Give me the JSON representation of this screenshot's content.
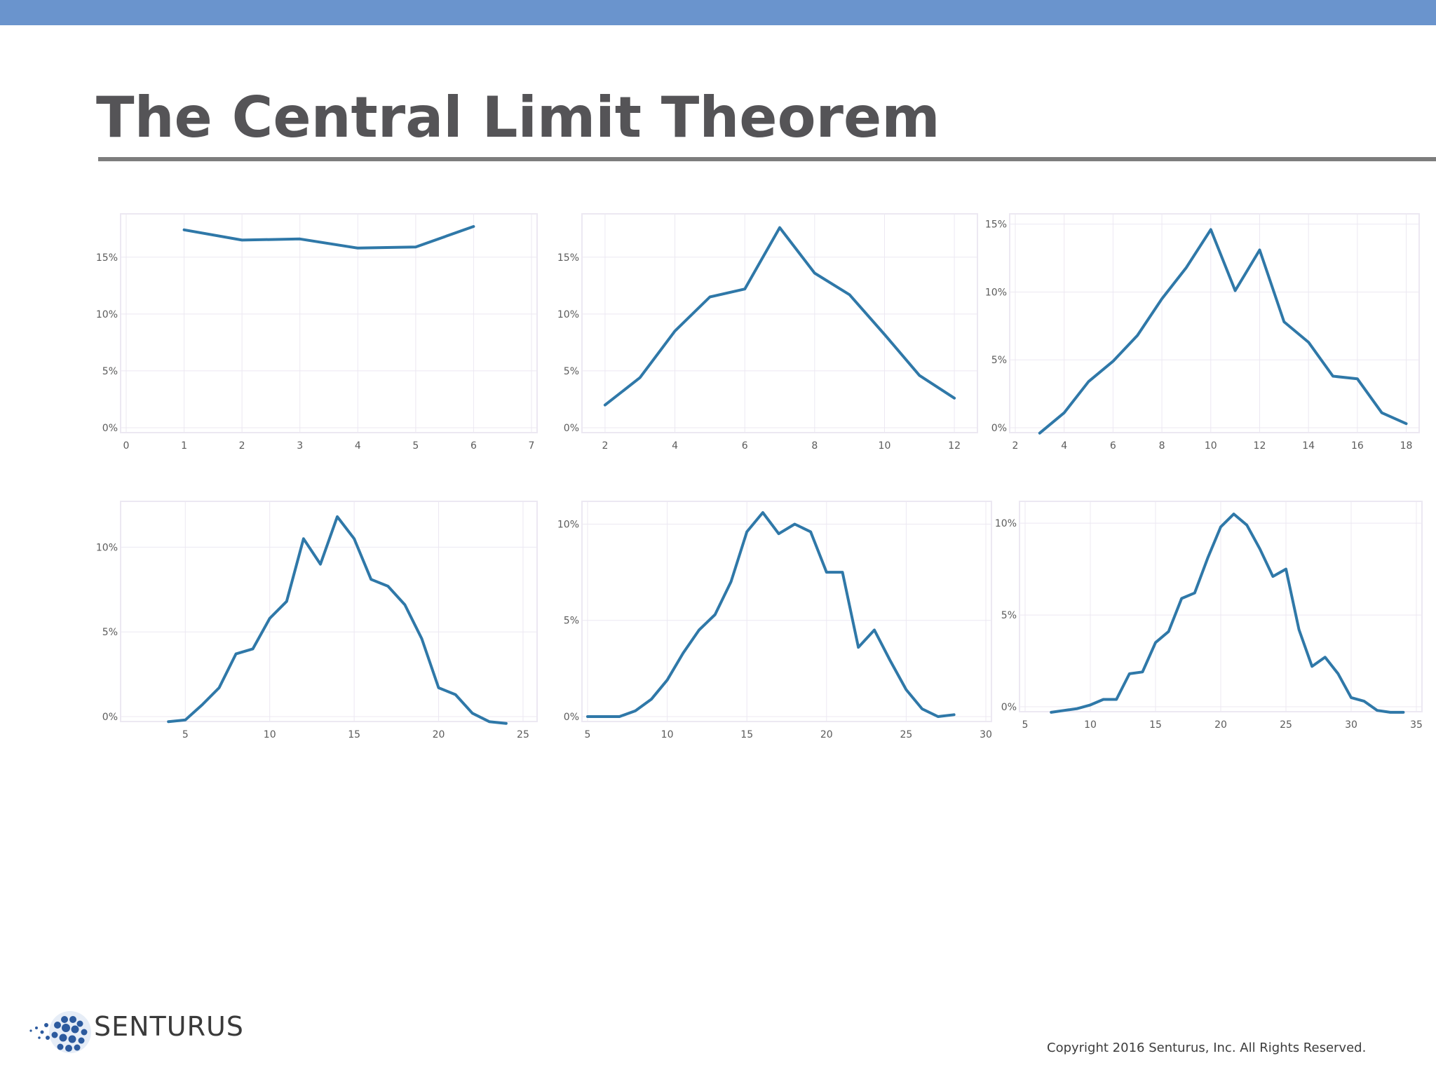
{
  "slide": {
    "title": "The Central Limit Theorem",
    "copyright": "Copyright 2016 Senturus, Inc. All Rights Reserved.",
    "logo_text": "SENTURUS"
  },
  "colors": {
    "line": "#2f78a8",
    "top_bar": "#6a94cd",
    "grid": "#ece8f2"
  },
  "chart_data": [
    {
      "type": "line",
      "xlim": [
        0,
        7
      ],
      "ylim": [
        0,
        18.5
      ],
      "xticks": [
        0,
        1,
        2,
        3,
        4,
        5,
        6,
        7
      ],
      "yticks": [
        0,
        5,
        10,
        15
      ],
      "x": [
        1,
        2,
        3,
        4,
        5,
        6
      ],
      "values": [
        17.4,
        16.5,
        16.6,
        15.8,
        15.9,
        17.7
      ]
    },
    {
      "type": "line",
      "xlim": [
        1.5,
        12.5
      ],
      "ylim": [
        0,
        18.5
      ],
      "xticks": [
        2,
        4,
        6,
        8,
        10,
        12
      ],
      "yticks": [
        0,
        5,
        10,
        15
      ],
      "x": [
        2,
        3,
        4,
        5,
        6,
        7,
        8,
        9,
        10,
        11,
        12
      ],
      "values": [
        2.0,
        4.4,
        8.5,
        11.5,
        12.2,
        17.6,
        13.6,
        11.7,
        8.2,
        4.6,
        2.6
      ]
    },
    {
      "type": "line",
      "xlim": [
        2,
        18.3
      ],
      "ylim": [
        0,
        15.5
      ],
      "xticks": [
        2,
        4,
        6,
        8,
        10,
        12,
        14,
        16,
        18
      ],
      "yticks": [
        0,
        5,
        10,
        15
      ],
      "x": [
        3,
        4,
        5,
        6,
        7,
        8,
        9,
        10,
        11,
        12,
        13,
        14,
        15,
        16,
        17,
        18
      ],
      "values": [
        -0.4,
        1.1,
        3.4,
        4.9,
        6.8,
        9.5,
        11.8,
        14.6,
        10.1,
        13.1,
        7.8,
        6.3,
        3.8,
        3.6,
        1.1,
        0.3
      ]
    },
    {
      "type": "line",
      "xlim": [
        1.5,
        25.5
      ],
      "ylim": [
        0,
        12.5
      ],
      "xticks": [
        5,
        10,
        15,
        20,
        25
      ],
      "yticks": [
        0,
        5,
        10
      ],
      "x": [
        4,
        5,
        6,
        7,
        8,
        9,
        10,
        11,
        12,
        13,
        14,
        15,
        16,
        17,
        18,
        19,
        20,
        21,
        22,
        23,
        24
      ],
      "values": [
        -0.3,
        -0.2,
        0.7,
        1.7,
        3.7,
        4.0,
        5.8,
        6.8,
        10.5,
        9.0,
        11.8,
        10.5,
        8.1,
        7.7,
        6.6,
        4.6,
        1.7,
        1.3,
        0.2,
        -0.3,
        -0.4
      ]
    },
    {
      "type": "line",
      "xlim": [
        5,
        30
      ],
      "ylim": [
        0,
        11
      ],
      "xticks": [
        5,
        10,
        15,
        20,
        25,
        30
      ],
      "yticks": [
        0,
        5,
        10
      ],
      "x": [
        5,
        6,
        7,
        8,
        9,
        10,
        11,
        12,
        13,
        14,
        15,
        16,
        17,
        18,
        19,
        20,
        21,
        22,
        23,
        24,
        25,
        26,
        27,
        28
      ],
      "values": [
        0,
        0,
        0,
        0.3,
        0.9,
        1.9,
        3.3,
        4.5,
        5.3,
        7.0,
        9.6,
        10.6,
        9.5,
        10.0,
        9.6,
        7.5,
        7.5,
        3.6,
        4.5,
        2.9,
        1.4,
        0.4,
        0.0,
        0.1
      ]
    },
    {
      "type": "line",
      "xlim": [
        5,
        35
      ],
      "ylim": [
        0,
        11
      ],
      "xticks": [
        5,
        10,
        15,
        20,
        25,
        30,
        35
      ],
      "yticks": [
        0,
        5,
        10
      ],
      "x": [
        7,
        8,
        9,
        10,
        11,
        12,
        13,
        14,
        15,
        16,
        17,
        18,
        19,
        20,
        21,
        22,
        23,
        24,
        25,
        26,
        27,
        28,
        29,
        30,
        31,
        32,
        33,
        34
      ],
      "values": [
        -0.3,
        -0.2,
        -0.1,
        0.1,
        0.4,
        0.4,
        1.8,
        1.9,
        3.5,
        4.1,
        5.9,
        6.2,
        8.1,
        9.8,
        10.5,
        9.9,
        8.6,
        7.1,
        7.5,
        4.2,
        2.2,
        2.7,
        1.8,
        0.5,
        0.3,
        -0.2,
        -0.3,
        -0.3
      ]
    }
  ]
}
